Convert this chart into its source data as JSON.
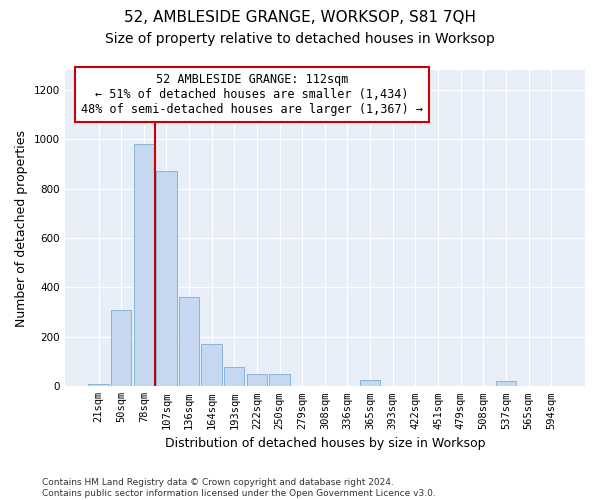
{
  "title": "52, AMBLESIDE GRANGE, WORKSOP, S81 7QH",
  "subtitle": "Size of property relative to detached houses in Worksop",
  "xlabel": "Distribution of detached houses by size in Worksop",
  "ylabel": "Number of detached properties",
  "categories": [
    "21sqm",
    "50sqm",
    "78sqm",
    "107sqm",
    "136sqm",
    "164sqm",
    "193sqm",
    "222sqm",
    "250sqm",
    "279sqm",
    "308sqm",
    "336sqm",
    "365sqm",
    "393sqm",
    "422sqm",
    "451sqm",
    "479sqm",
    "508sqm",
    "537sqm",
    "565sqm",
    "594sqm"
  ],
  "values": [
    8,
    310,
    980,
    870,
    360,
    170,
    80,
    50,
    50,
    0,
    0,
    0,
    25,
    0,
    0,
    0,
    0,
    0,
    20,
    0,
    0
  ],
  "bar_color": "#c5d8f0",
  "bar_edge_color": "#7aadd4",
  "vline_color": "#cc0000",
  "vline_pos": 2.5,
  "annotation_text": "52 AMBLESIDE GRANGE: 112sqm\n← 51% of detached houses are smaller (1,434)\n48% of semi-detached houses are larger (1,367) →",
  "annotation_box_color": "#ffffff",
  "annotation_box_edge": "#cc0000",
  "ylim": [
    0,
    1280
  ],
  "yticks": [
    0,
    200,
    400,
    600,
    800,
    1000,
    1200
  ],
  "footer": "Contains HM Land Registry data © Crown copyright and database right 2024.\nContains public sector information licensed under the Open Government Licence v3.0.",
  "bg_color": "#e8eef8",
  "title_fontsize": 11,
  "subtitle_fontsize": 10,
  "axis_label_fontsize": 9,
  "tick_fontsize": 7.5,
  "ann_fontsize": 8.5
}
